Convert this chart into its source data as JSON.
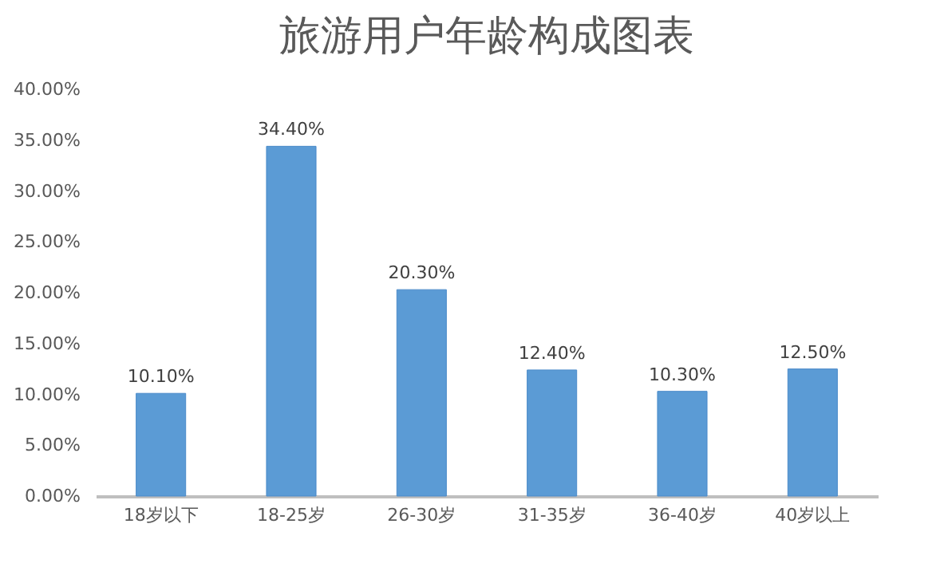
{
  "chart_data": {
    "type": "bar",
    "title": "旅游用户年龄构成图表",
    "categories": [
      "18岁以下",
      "18-25岁",
      "26-30岁",
      "31-35岁",
      "36-40岁",
      "40岁以上"
    ],
    "values": [
      10.1,
      34.4,
      20.3,
      12.4,
      10.3,
      12.5
    ],
    "value_labels": [
      "10.10%",
      "34.40%",
      "20.30%",
      "12.40%",
      "10.30%",
      "12.50%"
    ],
    "color": "#5b9bd5",
    "ylim": [
      0,
      40
    ],
    "yticks": [
      {
        "value": 0,
        "label": "0.00%"
      },
      {
        "value": 5,
        "label": "5.00%"
      },
      {
        "value": 10,
        "label": "10.00%"
      },
      {
        "value": 15,
        "label": "15.00%"
      },
      {
        "value": 20,
        "label": "20.00%"
      },
      {
        "value": 25,
        "label": "25.00%"
      },
      {
        "value": 30,
        "label": "30.00%"
      },
      {
        "value": 35,
        "label": "35.00%"
      },
      {
        "value": 40,
        "label": "40.00%"
      }
    ],
    "grid": false
  }
}
